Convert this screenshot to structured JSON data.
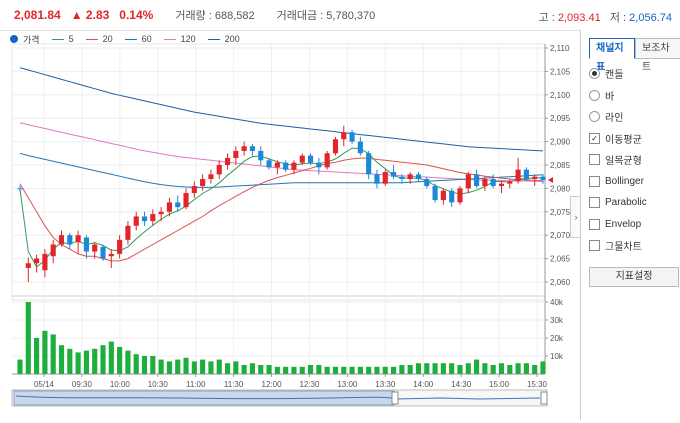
{
  "header": {
    "price": "2,081.84",
    "change": "▲ 2.83",
    "change_pct": "0.14%",
    "volume_label": "거래량 : ",
    "volume": "688,582",
    "amount_label": "거래대금 : ",
    "amount": "5,780,370",
    "high_label": "고 : ",
    "high": "2,093.41",
    "low_label": "저 : ",
    "low": "2,056.74"
  },
  "legend": [
    {
      "name": "가격",
      "color": "#1565c0",
      "kind": "dot"
    },
    {
      "name": "5",
      "color": "#2e9e57",
      "kind": "line"
    },
    {
      "name": "20",
      "color": "#d9534f",
      "kind": "line"
    },
    {
      "name": "60",
      "color": "#1f77b4",
      "kind": "line"
    },
    {
      "name": "120",
      "color": "#e377c2",
      "kind": "line"
    },
    {
      "name": "200",
      "color": "#1a5fa8",
      "kind": "line"
    }
  ],
  "chart_data": {
    "type": "candlestick",
    "price_axis": {
      "min": 2057,
      "max": 2110,
      "ticks": [
        "2,110",
        "2,105",
        "2,100",
        "2,095",
        "2,090",
        "2,085",
        "2,080",
        "2,075",
        "2,070",
        "2,065",
        "2,060"
      ]
    },
    "volume_axis": {
      "min": 0,
      "max": 40000,
      "ticks": [
        "40k",
        "30k",
        "20k",
        "10k"
      ]
    },
    "x_labels": [
      "05/14",
      "09:30",
      "10:00",
      "10:30",
      "11:00",
      "11:30",
      "12:00",
      "12:30",
      "13:00",
      "13:30",
      "14:00",
      "14:30",
      "15:00",
      "15:30"
    ],
    "colors": {
      "up": "#e0262b",
      "down": "#1e88d8"
    },
    "candles": [
      [
        2080.0,
        2080.6,
        2079.2,
        2079.8
      ],
      [
        2063.0,
        2065.2,
        2060.0,
        2064.0
      ],
      [
        2064.0,
        2065.8,
        2062.0,
        2065.0
      ],
      [
        2062.5,
        2067.0,
        2061.0,
        2066.0
      ],
      [
        2065.5,
        2069.0,
        2064.0,
        2068.0
      ],
      [
        2068.0,
        2071.0,
        2067.5,
        2070.0
      ],
      [
        2070.0,
        2070.5,
        2067.0,
        2068.0
      ],
      [
        2068.5,
        2071.0,
        2066.0,
        2070.0
      ],
      [
        2069.5,
        2070.0,
        2065.0,
        2066.5
      ],
      [
        2066.5,
        2068.5,
        2065.0,
        2068.0
      ],
      [
        2067.5,
        2068.0,
        2064.5,
        2065.0
      ],
      [
        2065.5,
        2067.0,
        2063.0,
        2066.0
      ],
      [
        2066.0,
        2070.0,
        2065.0,
        2069.0
      ],
      [
        2069.0,
        2073.0,
        2068.0,
        2072.0
      ],
      [
        2072.0,
        2075.0,
        2071.0,
        2074.0
      ],
      [
        2074.0,
        2075.0,
        2072.0,
        2073.0
      ],
      [
        2073.0,
        2075.5,
        2072.0,
        2074.5
      ],
      [
        2074.5,
        2076.0,
        2073.0,
        2075.0
      ],
      [
        2075.0,
        2078.0,
        2074.0,
        2077.0
      ],
      [
        2077.0,
        2078.5,
        2075.0,
        2076.0
      ],
      [
        2076.0,
        2080.0,
        2075.5,
        2079.0
      ],
      [
        2079.0,
        2081.5,
        2078.0,
        2080.5
      ],
      [
        2080.5,
        2083.0,
        2079.5,
        2082.0
      ],
      [
        2082.0,
        2084.0,
        2081.0,
        2083.0
      ],
      [
        2083.0,
        2086.0,
        2082.0,
        2085.0
      ],
      [
        2085.0,
        2087.5,
        2084.0,
        2086.5
      ],
      [
        2086.5,
        2089.0,
        2085.0,
        2088.0
      ],
      [
        2088.0,
        2090.0,
        2087.0,
        2089.0
      ],
      [
        2089.0,
        2089.5,
        2087.0,
        2088.0
      ],
      [
        2088.0,
        2089.0,
        2085.0,
        2086.0
      ],
      [
        2086.0,
        2086.5,
        2084.0,
        2084.5
      ],
      [
        2084.5,
        2086.0,
        2083.0,
        2085.5
      ],
      [
        2085.5,
        2086.0,
        2083.5,
        2084.0
      ],
      [
        2084.0,
        2086.0,
        2083.0,
        2085.5
      ],
      [
        2085.5,
        2087.5,
        2085.0,
        2087.0
      ],
      [
        2087.0,
        2087.5,
        2085.0,
        2085.5
      ],
      [
        2085.5,
        2086.5,
        2083.0,
        2084.5
      ],
      [
        2084.5,
        2088.0,
        2084.0,
        2087.5
      ],
      [
        2087.5,
        2091.0,
        2087.0,
        2090.5
      ],
      [
        2090.5,
        2093.4,
        2089.0,
        2092.0
      ],
      [
        2092.0,
        2092.5,
        2089.5,
        2090.0
      ],
      [
        2090.0,
        2091.0,
        2087.0,
        2087.5
      ],
      [
        2087.5,
        2088.0,
        2082.0,
        2083.0
      ],
      [
        2083.0,
        2084.0,
        2080.0,
        2081.0
      ],
      [
        2081.0,
        2084.0,
        2080.5,
        2083.5
      ],
      [
        2083.5,
        2085.0,
        2082.0,
        2082.5
      ],
      [
        2082.5,
        2083.0,
        2081.0,
        2082.0
      ],
      [
        2082.0,
        2083.5,
        2081.0,
        2083.0
      ],
      [
        2083.0,
        2083.5,
        2081.5,
        2082.0
      ],
      [
        2082.0,
        2082.5,
        2080.0,
        2080.5
      ],
      [
        2080.5,
        2081.0,
        2077.0,
        2077.5
      ],
      [
        2077.5,
        2080.0,
        2076.5,
        2079.5
      ],
      [
        2079.5,
        2080.0,
        2076.0,
        2077.0
      ],
      [
        2077.0,
        2080.5,
        2076.5,
        2080.0
      ],
      [
        2080.0,
        2083.5,
        2079.0,
        2083.0
      ],
      [
        2083.0,
        2084.0,
        2080.0,
        2080.5
      ],
      [
        2080.5,
        2082.5,
        2079.5,
        2082.0
      ],
      [
        2082.0,
        2083.0,
        2080.0,
        2080.5
      ],
      [
        2080.5,
        2081.5,
        2079.0,
        2081.0
      ],
      [
        2081.0,
        2082.0,
        2080.0,
        2081.5
      ],
      [
        2081.5,
        2086.5,
        2081.0,
        2084.0
      ],
      [
        2084.0,
        2084.5,
        2081.5,
        2082.0
      ],
      [
        2082.0,
        2083.0,
        2080.5,
        2082.5
      ],
      [
        2082.5,
        2083.0,
        2081.0,
        2081.8
      ]
    ],
    "volumes": [
      8,
      40,
      20,
      24,
      22,
      16,
      14,
      12,
      13,
      14,
      16,
      18,
      15,
      13,
      11,
      10,
      10,
      8,
      7,
      8,
      9,
      7,
      8,
      7,
      8,
      6,
      7,
      5,
      6,
      5,
      5,
      4,
      4,
      4,
      4,
      5,
      5,
      4,
      4,
      4,
      4,
      4,
      4,
      4,
      4,
      4,
      5,
      5,
      6,
      6,
      6,
      6,
      6,
      5,
      6,
      8,
      6,
      5,
      6,
      5,
      6,
      6,
      5,
      7
    ],
    "ma": {
      "5": [
        2079.8,
        2066.5,
        2063.2,
        2064.6,
        2067.0,
        2068.4,
        2068.2,
        2068.7,
        2068.0,
        2068.4,
        2067.8,
        2066.8,
        2066.7,
        2067.5,
        2069.2,
        2070.7,
        2072.1,
        2073.4,
        2074.5,
        2075.2,
        2076.2,
        2077.6,
        2078.9,
        2079.9,
        2081.2,
        2082.8,
        2084.2,
        2085.8,
        2086.8,
        2086.9,
        2086.3,
        2085.7,
        2085.2,
        2084.9,
        2085.3,
        2085.4,
        2085.3,
        2085.6,
        2086.3,
        2087.5,
        2088.6,
        2088.5,
        2087.4,
        2085.6,
        2084.2,
        2082.7,
        2082.2,
        2082.2,
        2082.2,
        2081.6,
        2080.6,
        2079.9,
        2079.2,
        2078.8,
        2079.1,
        2079.6,
        2080.4,
        2081.4,
        2081.5,
        2081.3,
        2082.1,
        2082.0,
        2082.3,
        2082.2
      ],
      "20": [
        2081.0,
        2078.0,
        2075.0,
        2072.0,
        2069.5,
        2068.0,
        2067.0,
        2066.0,
        2065.5,
        2065.5,
        2065.0,
        2064.5,
        2064.5,
        2065.0,
        2066.0,
        2067.0,
        2068.0,
        2069.0,
        2070.0,
        2071.0,
        2072.0,
        2073.0,
        2074.0,
        2075.2,
        2076.3,
        2077.3,
        2078.3,
        2079.3,
        2080.2,
        2081.0,
        2081.7,
        2082.3,
        2082.8,
        2083.3,
        2083.8,
        2084.3,
        2084.8,
        2085.3,
        2085.6,
        2086.0,
        2086.3,
        2086.5,
        2086.4,
        2086.2,
        2086.0,
        2085.8,
        2085.6,
        2085.4,
        2085.2,
        2085.0,
        2084.6,
        2084.2,
        2083.8,
        2083.4,
        2083.1,
        2082.9,
        2082.6,
        2082.4,
        2082.2,
        2082.0,
        2081.9,
        2081.8,
        2081.7,
        2081.6
      ],
      "60": [
        2087.5,
        2087.0,
        2086.6,
        2086.2,
        2085.8,
        2085.4,
        2085.0,
        2084.6,
        2084.2,
        2083.8,
        2083.4,
        2083.0,
        2082.6,
        2082.2,
        2081.8,
        2081.4,
        2081.1,
        2080.8,
        2080.6,
        2080.4,
        2080.3,
        2080.2,
        2080.2,
        2080.2,
        2080.3,
        2080.4,
        2080.5,
        2080.6,
        2080.7,
        2080.8,
        2080.9,
        2081.0,
        2081.1,
        2081.2,
        2081.2,
        2081.2,
        2081.2,
        2081.2,
        2081.2,
        2081.2,
        2081.2,
        2081.2,
        2081.2,
        2081.2,
        2081.2,
        2081.2,
        2081.2,
        2081.3,
        2081.4,
        2081.5,
        2081.6,
        2081.7,
        2081.8,
        2081.9,
        2082.0,
        2082.1,
        2082.2,
        2082.3,
        2082.4,
        2082.5,
        2082.6,
        2082.7,
        2082.8,
        2082.9
      ],
      "120": [
        2094.0,
        2093.6,
        2093.2,
        2092.8,
        2092.4,
        2092.0,
        2091.6,
        2091.2,
        2090.8,
        2090.4,
        2090.0,
        2089.6,
        2089.2,
        2088.8,
        2088.4,
        2088.0,
        2087.7,
        2087.4,
        2087.1,
        2086.8,
        2086.6,
        2086.4,
        2086.2,
        2086.0,
        2085.8,
        2085.6,
        2085.4,
        2085.2,
        2085.0,
        2084.8,
        2084.6,
        2084.4,
        2084.2,
        2084.0,
        2083.9,
        2083.8,
        2083.7,
        2083.6,
        2083.5,
        2083.4,
        2083.3,
        2083.2,
        2083.1,
        2083.0,
        2082.9,
        2082.8,
        2082.7,
        2082.6,
        2082.5,
        2082.4,
        2082.3,
        2082.2,
        2082.1,
        2082.0,
        2081.9,
        2081.8,
        2081.8,
        2081.7,
        2081.7,
        2081.6,
        2081.6,
        2081.6,
        2081.5,
        2081.5
      ],
      "200": [
        2105.8,
        2105.3,
        2104.8,
        2104.3,
        2103.8,
        2103.3,
        2102.8,
        2102.3,
        2101.8,
        2101.3,
        2100.8,
        2100.3,
        2099.9,
        2099.5,
        2099.1,
        2098.7,
        2098.3,
        2097.9,
        2097.5,
        2097.1,
        2096.7,
        2096.3,
        2096.0,
        2095.7,
        2095.4,
        2095.1,
        2094.8,
        2094.5,
        2094.2,
        2093.9,
        2093.7,
        2093.5,
        2093.3,
        2093.1,
        2092.9,
        2092.7,
        2092.5,
        2092.3,
        2092.1,
        2091.9,
        2091.7,
        2091.5,
        2091.3,
        2091.1,
        2090.9,
        2090.7,
        2090.5,
        2090.3,
        2090.1,
        2089.9,
        2089.7,
        2089.5,
        2089.3,
        2089.1,
        2088.9,
        2088.8,
        2088.7,
        2088.6,
        2088.5,
        2088.4,
        2088.3,
        2088.2,
        2088.1,
        2088.0
      ]
    }
  },
  "side": {
    "tabs": [
      {
        "label": "채널지표",
        "active": true
      },
      {
        "label": "보조차트",
        "active": false
      }
    ],
    "chart_types": [
      {
        "label": "캔들",
        "selected": true
      },
      {
        "label": "바",
        "selected": false
      },
      {
        "label": "라인",
        "selected": false
      }
    ],
    "indicators": [
      {
        "label": "이동평균",
        "checked": true
      },
      {
        "label": "일목균형",
        "checked": false
      },
      {
        "label": "Bollinger",
        "checked": false
      },
      {
        "label": "Parabolic",
        "checked": false
      },
      {
        "label": "Envelop",
        "checked": false
      },
      {
        "label": "그물차트",
        "checked": false
      }
    ],
    "settings_label": "지표설정",
    "expand_glyph": "›"
  }
}
